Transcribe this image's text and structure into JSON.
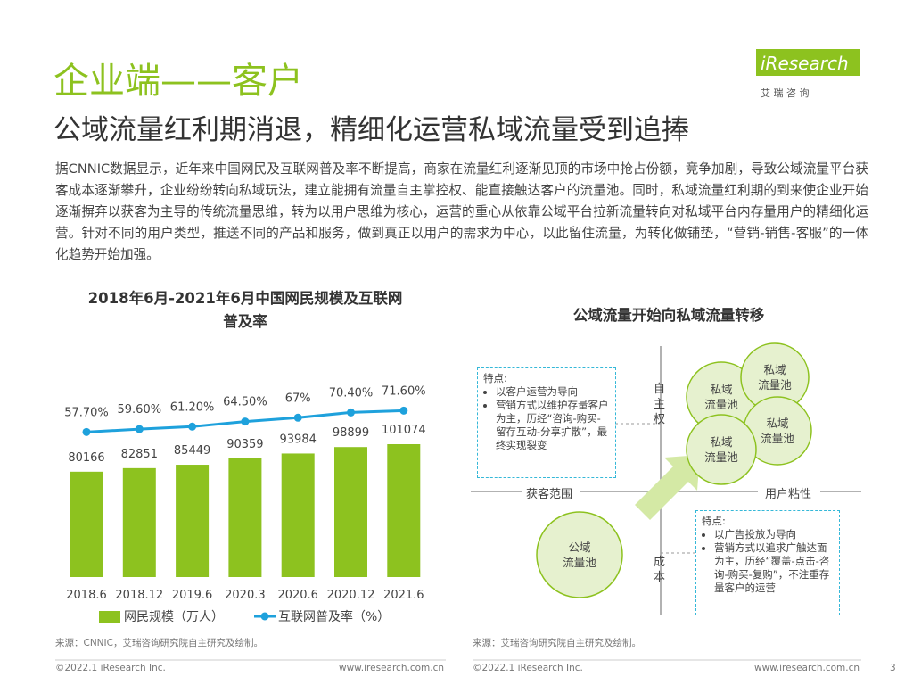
{
  "header": {
    "title": "企业端——客户",
    "subtitle": "公域流量红利期消退，精细化运营私域流量受到追捧"
  },
  "logo": {
    "name": "iResearch",
    "tagline": "艾 瑞 咨 询"
  },
  "paragraph": "据CNNIC数据显示，近年来中国网民及互联网普及率不断提高，商家在流量红利逐渐见顶的市场中抢占份额，竞争加剧，导致公域流量平台获客成本逐渐攀升，企业纷纷转向私域玩法，建立能拥有流量自主掌控权、能直接触达客户的流量池。同时，私域流量红利期的到来使企业开始逐渐摒弃以获客为主导的传统流量思维，转为以用户思维为核心，运营的重心从依靠公域平台拉新流量转向对私域平台内存量用户的精细化运营。针对不同的用户类型，推送不同的产品和服务，做到真正以用户的需求为中心，以此留住流量，为转化做铺垫，“营销-销售-客服”的一体化趋势开始加强。",
  "chart_data": {
    "type": "bar-line",
    "title": "2018年6月-2021年6月中国网民规模及互联网普及率",
    "categories": [
      "2018.6",
      "2018.12",
      "2019.6",
      "2020.3",
      "2020.6",
      "2020.12",
      "2021.6"
    ],
    "series": [
      {
        "name": "网民规模（万人）",
        "type": "bar",
        "color": "#8dc21f",
        "values": [
          80166,
          82851,
          85449,
          90359,
          93984,
          98899,
          101074
        ]
      },
      {
        "name": "互联网普及率（%）",
        "type": "line",
        "color": "#1ea1dc",
        "values": [
          57.7,
          59.6,
          61.2,
          64.5,
          67,
          70.4,
          71.6
        ],
        "value_labels": [
          "57.70%",
          "59.60%",
          "61.20%",
          "64.50%",
          "67%",
          "70.40%",
          "71.60%"
        ]
      }
    ]
  },
  "diagram": {
    "title": "公域流量开始向私域流量转移",
    "axes": {
      "up": "自主权",
      "down": "成本",
      "left": "获客范围",
      "right": "用户粘性"
    },
    "private_pools": [
      "私域\n流量池",
      "私域\n流量池",
      "私域\n流量池",
      "私域\n流量池"
    ],
    "public_pool": "公域\n流量池",
    "boxes": [
      {
        "heading": "特点:",
        "items": [
          "以客户运营为导向",
          "营销方式以维护存量客户为主，历经“咨询-购买-留存互动-分享扩散”，最终实现裂变"
        ]
      },
      {
        "heading": "特点:",
        "items": [
          "以广告投放为导向",
          "营销方式以追求广触达面为主，历经“覆盖-点击-咨询-购买-复购”，不注重存量客户的运营"
        ]
      }
    ]
  },
  "sources": [
    "来源：CNNIC，艾瑞咨询研究院自主研究及绘制。",
    "来源：艾瑞咨询研究院自主研究及绘制。"
  ],
  "footer": {
    "copyright": "©2022.1 iResearch Inc.",
    "website": "www.iresearch.com.cn",
    "page": "3"
  }
}
